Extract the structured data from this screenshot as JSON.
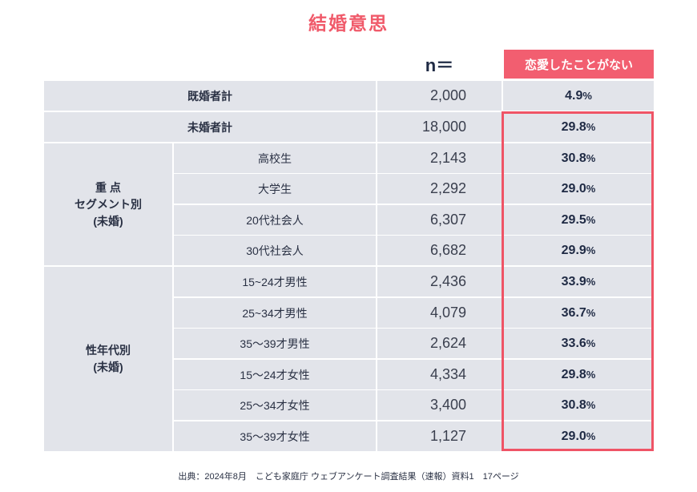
{
  "title": "結婚意思",
  "header": {
    "n_label": "n＝",
    "value_column": "恋愛したことがない"
  },
  "rows": [
    {
      "label": "既婚者計",
      "n": "2,000",
      "value": "4.9",
      "unit": "%"
    },
    {
      "label": "未婚者計",
      "n": "18,000",
      "value": "29.8",
      "unit": "%"
    },
    {
      "label": "高校生",
      "n": "2,143",
      "value": "30.8",
      "unit": "%"
    },
    {
      "label": "大学生",
      "n": "2,292",
      "value": "29.0",
      "unit": "%"
    },
    {
      "label": "20代社会人",
      "n": "6,307",
      "value": "29.5",
      "unit": "%"
    },
    {
      "label": "30代社会人",
      "n": "6,682",
      "value": "29.9",
      "unit": "%"
    },
    {
      "label": "15~24才男性",
      "n": "2,436",
      "value": "33.9",
      "unit": "%"
    },
    {
      "label": "25~34才男性",
      "n": "4,079",
      "value": "36.7",
      "unit": "%"
    },
    {
      "label": "35～39才男性",
      "n": "2,624",
      "value": "33.6",
      "unit": "%"
    },
    {
      "label": "15～24才女性",
      "n": "4,334",
      "value": "29.8",
      "unit": "%"
    },
    {
      "label": "25～34才女性",
      "n": "3,400",
      "value": "30.8",
      "unit": "%"
    },
    {
      "label": "35～39才女性",
      "n": "1,127",
      "value": "29.0",
      "unit": "%"
    }
  ],
  "groups": [
    {
      "label": "重 点\nセグメント別\n(未婚)"
    },
    {
      "label": "性年代別\n(未婚)"
    }
  ],
  "footer": "出典：2024年8月　こども家庭庁 ウェブアンケート調査結果（速報）資料1　17ページ",
  "colors": {
    "accent": "#f25e70",
    "cell_bg": "#e2e4ea",
    "title": "#f05a6a"
  }
}
